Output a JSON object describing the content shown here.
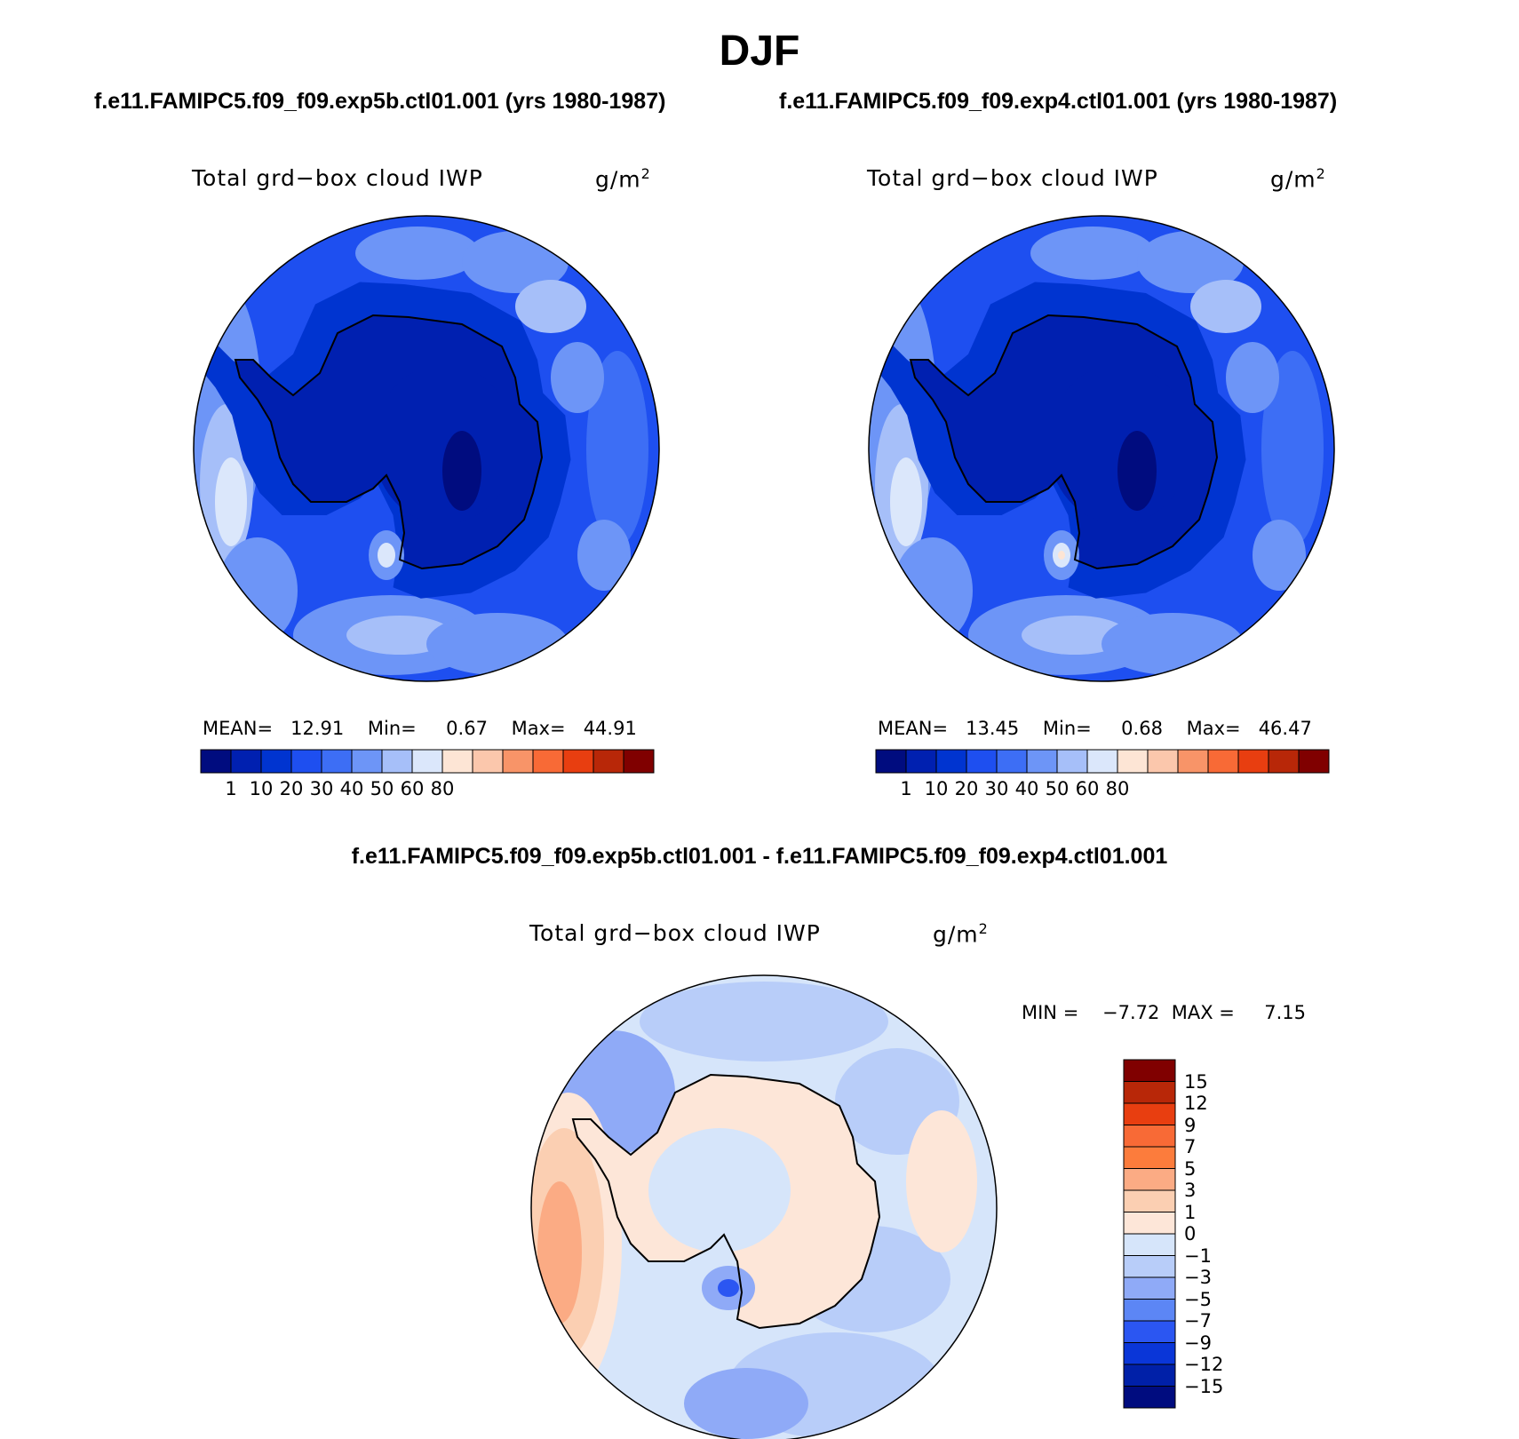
{
  "main_title": "DJF",
  "case_titles": {
    "left": "f.e11.FAMIPC5.f09_f09.exp5b.ctl01.001 (yrs 1980-1987)",
    "right": "f.e11.FAMIPC5.f09_f09.exp4.ctl01.001 (yrs 1980-1987)"
  },
  "diff_title": "f.e11.FAMIPC5.f09_f09.exp5b.ctl01.001 - f.e11.FAMIPC5.f09_f09.exp4.ctl01.001",
  "panel_variable": "Total grd−box cloud IWP",
  "units": "g/m",
  "units_exp": "2",
  "chart_data": [
    {
      "type": "heatmap",
      "panel": "exp5b",
      "title": "Total grd−box cloud IWP",
      "units": "g/m2",
      "stats": {
        "mean_label": "MEAN=",
        "mean": "12.91",
        "min_label": "Min=",
        "min": "0.67",
        "max_label": "Max=",
        "max": "44.91"
      },
      "colorbar": {
        "ticks": [
          "1",
          "10",
          "20",
          "30",
          "40",
          "50",
          "60",
          "80"
        ]
      }
    },
    {
      "type": "heatmap",
      "panel": "exp4",
      "title": "Total grd−box cloud IWP",
      "units": "g/m2",
      "stats": {
        "mean_label": "MEAN=",
        "mean": "13.45",
        "min_label": "Min=",
        "min": "0.68",
        "max_label": "Max=",
        "max": "46.47"
      },
      "colorbar": {
        "ticks": [
          "1",
          "10",
          "20",
          "30",
          "40",
          "50",
          "60",
          "80"
        ]
      }
    },
    {
      "type": "heatmap",
      "panel": "difference",
      "title": "Total grd−box cloud IWP",
      "units": "g/m2",
      "stats": {
        "min_label": "MIN =",
        "min": "−7.72",
        "max_label": "MAX =",
        "max": "7.15"
      },
      "colorbar": {
        "ticks": [
          "15",
          "12",
          "9",
          "7",
          "5",
          "3",
          "1",
          "0",
          "−1",
          "−3",
          "−5",
          "−7",
          "−9",
          "−12",
          "−15"
        ]
      }
    }
  ],
  "colors": {
    "abs_scale": [
      "#000c7f",
      "#0020b0",
      "#0034d0",
      "#1e4ff0",
      "#3d6ef5",
      "#6d95f7",
      "#a6bff9",
      "#dbe7fb",
      "#fde5d5",
      "#fbc7ac",
      "#f89468",
      "#f86a36",
      "#e83e10",
      "#b82708",
      "#800000"
    ],
    "diff_scale": [
      "#800000",
      "#b82708",
      "#e83e10",
      "#f86a36",
      "#fc7c3c",
      "#fbab84",
      "#fbcfb2",
      "#fde6d8",
      "#d6e5fa",
      "#b8cdf9",
      "#8faaf7",
      "#5c86f5",
      "#2b56f2",
      "#0a36d8",
      "#0020a8",
      "#000c7f"
    ]
  }
}
